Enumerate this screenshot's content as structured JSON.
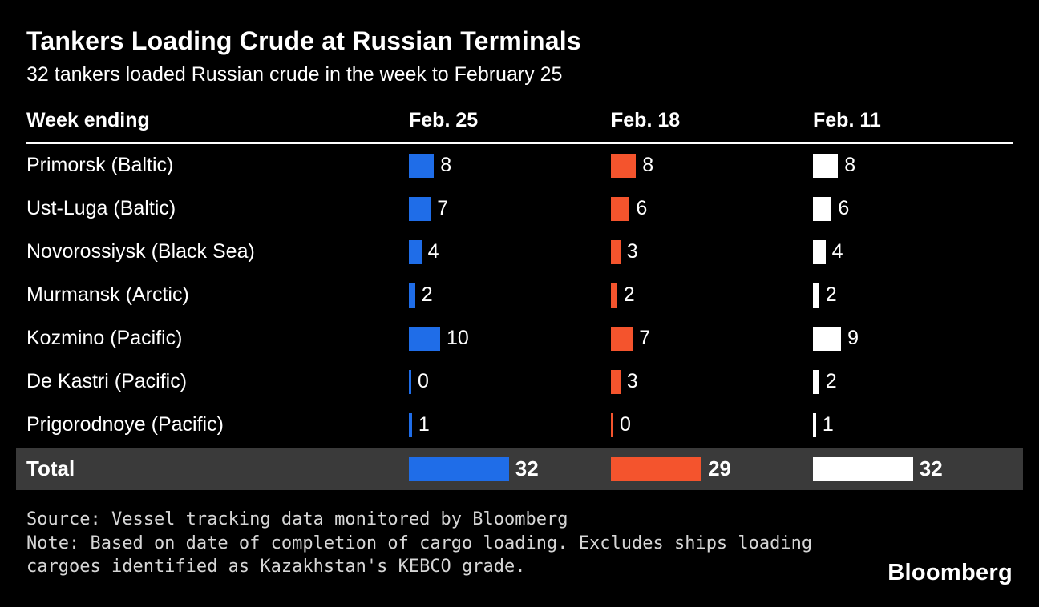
{
  "header": {
    "title": "Tankers Loading Crude at Russian Terminals",
    "subtitle": "32 tankers loaded Russian crude in the week to February 25"
  },
  "table": {
    "label_col": "Week ending",
    "columns": [
      {
        "label": "Feb. 25",
        "color": "#1f6de8"
      },
      {
        "label": "Feb. 18",
        "color": "#f4542d"
      },
      {
        "label": "Feb. 11",
        "color": "#ffffff"
      }
    ],
    "rows": [
      {
        "label": "Primorsk (Baltic)",
        "values": [
          8,
          8,
          8
        ]
      },
      {
        "label": "Ust-Luga (Baltic)",
        "values": [
          7,
          6,
          6
        ]
      },
      {
        "label": "Novorossiysk (Black Sea)",
        "values": [
          4,
          3,
          4
        ]
      },
      {
        "label": "Murmansk (Arctic)",
        "values": [
          2,
          2,
          2
        ]
      },
      {
        "label": "Kozmino (Pacific)",
        "values": [
          10,
          7,
          9
        ]
      },
      {
        "label": "De Kastri (Pacific)",
        "values": [
          0,
          3,
          2
        ]
      },
      {
        "label": "Prigorodnoye (Pacific)",
        "values": [
          1,
          0,
          1
        ]
      }
    ],
    "total": {
      "label": "Total",
      "values": [
        32,
        29,
        32
      ]
    }
  },
  "footer": {
    "source": "Source: Vessel tracking data monitored by Bloomberg",
    "note_line1": "Note: Based on date of completion of cargo loading. Excludes ships loading",
    "note_line2": "cargoes identified as Kazakhstan's KEBCO grade.",
    "logo": "Bloomberg"
  },
  "chart_data": {
    "type": "bar",
    "orientation": "horizontal",
    "title": "Tankers Loading Crude at Russian Terminals",
    "subtitle": "32 tankers loaded Russian crude in the week to February 25",
    "categories": [
      "Primorsk (Baltic)",
      "Ust-Luga (Baltic)",
      "Novorossiysk (Black Sea)",
      "Murmansk (Arctic)",
      "Kozmino (Pacific)",
      "De Kastri (Pacific)",
      "Prigorodnoye (Pacific)"
    ],
    "series": [
      {
        "name": "Feb. 25",
        "color": "#1f6de8",
        "values": [
          8,
          7,
          4,
          2,
          10,
          0,
          1
        ],
        "total": 32
      },
      {
        "name": "Feb. 18",
        "color": "#f4542d",
        "values": [
          8,
          6,
          3,
          2,
          7,
          3,
          0
        ],
        "total": 29
      },
      {
        "name": "Feb. 11",
        "color": "#ffffff",
        "values": [
          8,
          6,
          4,
          2,
          9,
          2,
          1
        ],
        "total": 32
      }
    ],
    "xlabel": "",
    "ylabel": "",
    "value_labels": true,
    "grid": false,
    "legend_position": "column-headers",
    "source": "Vessel tracking data monitored by Bloomberg",
    "note": "Based on date of completion of cargo loading. Excludes ships loading cargoes identified as Kazakhstan's KEBCO grade."
  }
}
